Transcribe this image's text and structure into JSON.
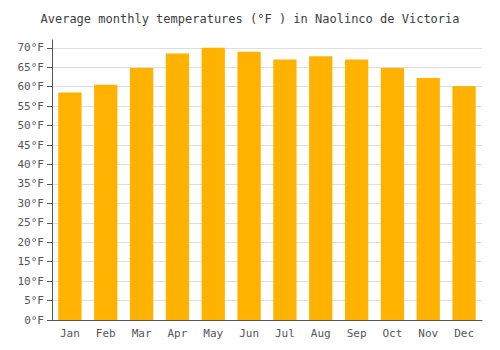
{
  "chart_data": {
    "type": "bar",
    "title": "Average monthly temperatures (°F ) in Naolinco de Victoria",
    "categories": [
      "Jan",
      "Feb",
      "Mar",
      "Apr",
      "May",
      "Jun",
      "Jul",
      "Aug",
      "Sep",
      "Oct",
      "Nov",
      "Dec"
    ],
    "values": [
      58.5,
      60.5,
      64.8,
      68.5,
      70.0,
      69.0,
      67.0,
      67.8,
      67.0,
      64.8,
      62.2,
      60.2
    ],
    "color": "#FFB300",
    "ylim": [
      0,
      72
    ],
    "yticks": [
      {
        "value": 0,
        "label": "0°F"
      },
      {
        "value": 5,
        "label": "5°F"
      },
      {
        "value": 10,
        "label": "10°F"
      },
      {
        "value": 15,
        "label": "15°F"
      },
      {
        "value": 20,
        "label": "20°F"
      },
      {
        "value": 25,
        "label": "25°F"
      },
      {
        "value": 30,
        "label": "30°F"
      },
      {
        "value": 35,
        "label": "35°F"
      },
      {
        "value": 40,
        "label": "40°F"
      },
      {
        "value": 45,
        "label": "45°F"
      },
      {
        "value": 50,
        "label": "50°F"
      },
      {
        "value": 55,
        "label": "55°F"
      },
      {
        "value": 60,
        "label": "60°F"
      },
      {
        "value": 65,
        "label": "65°F"
      },
      {
        "value": 70,
        "label": "70°F"
      }
    ],
    "grid": true
  }
}
